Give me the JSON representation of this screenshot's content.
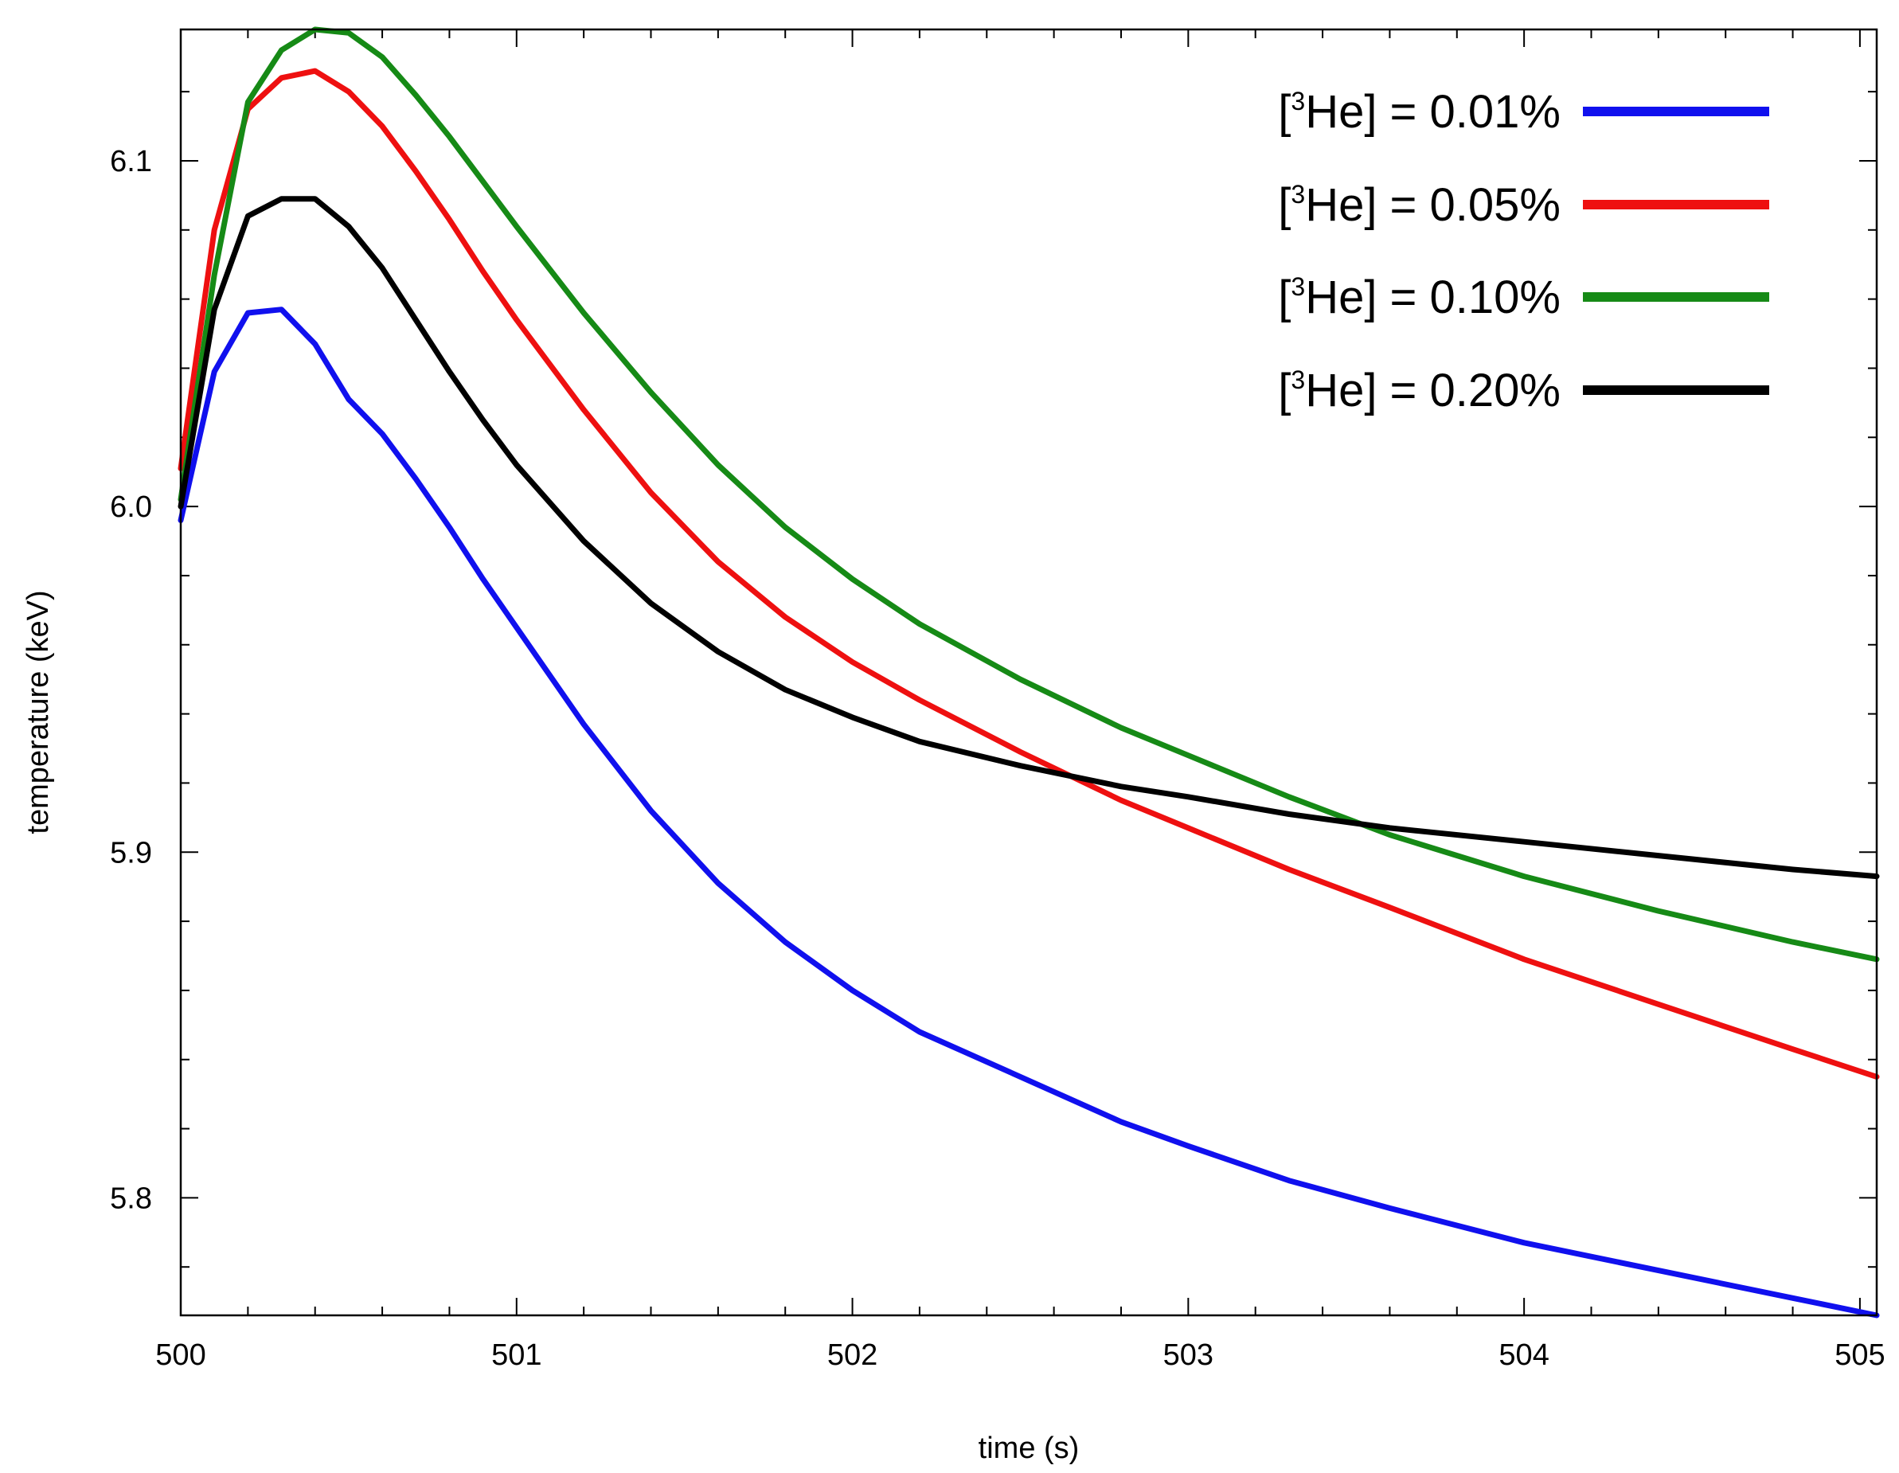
{
  "chart_data": {
    "type": "line",
    "title": "",
    "xlabel": "time (s)",
    "ylabel": "temperature (keV)",
    "xlim": [
      500,
      505.05
    ],
    "ylim": [
      5.766,
      6.138
    ],
    "xticks": [
      500,
      501,
      502,
      503,
      504,
      505
    ],
    "xtick_labels": [
      "500",
      "501",
      "502",
      "503",
      "504",
      "505"
    ],
    "yticks": [
      5.8,
      5.9,
      6.0,
      6.1
    ],
    "ytick_labels": [
      "5.8",
      "5.9",
      "6.0",
      "6.1"
    ],
    "grid": false,
    "legend_position": "top-right",
    "series": [
      {
        "name": "[3He] = 0.01%",
        "label_prefix": "[",
        "label_sup": "3",
        "label_rest": "He] = 0.01%",
        "color": "#1010ee",
        "x": [
          500.0,
          500.1,
          500.2,
          500.3,
          500.4,
          500.5,
          500.6,
          500.7,
          500.8,
          500.9,
          501.0,
          501.2,
          501.4,
          501.6,
          501.8,
          502.0,
          502.2,
          502.5,
          502.8,
          503.0,
          503.3,
          503.6,
          504.0,
          504.4,
          504.8,
          505.05
        ],
        "y": [
          5.996,
          6.039,
          6.056,
          6.057,
          6.047,
          6.031,
          6.021,
          6.008,
          5.994,
          5.979,
          5.965,
          5.937,
          5.912,
          5.891,
          5.874,
          5.86,
          5.848,
          5.835,
          5.822,
          5.815,
          5.805,
          5.797,
          5.787,
          5.779,
          5.771,
          5.766
        ]
      },
      {
        "name": "[3He] = 0.05%",
        "label_prefix": "[",
        "label_sup": "3",
        "label_rest": "He] = 0.05%",
        "color": "#ee1010",
        "x": [
          500.0,
          500.1,
          500.2,
          500.3,
          500.4,
          500.5,
          500.6,
          500.7,
          500.8,
          500.9,
          501.0,
          501.2,
          501.4,
          501.6,
          501.8,
          502.0,
          502.2,
          502.5,
          502.8,
          503.0,
          503.3,
          503.6,
          504.0,
          504.4,
          504.8,
          505.05
        ],
        "y": [
          6.011,
          6.08,
          6.115,
          6.124,
          6.126,
          6.12,
          6.11,
          6.097,
          6.083,
          6.068,
          6.054,
          6.028,
          6.004,
          5.984,
          5.968,
          5.955,
          5.944,
          5.929,
          5.915,
          5.907,
          5.895,
          5.884,
          5.869,
          5.856,
          5.843,
          5.835
        ]
      },
      {
        "name": "[3He] = 0.10%",
        "label_prefix": "[",
        "label_sup": "3",
        "label_rest": "He] = 0.10%",
        "color": "#168a16",
        "x": [
          500.0,
          500.1,
          500.2,
          500.3,
          500.4,
          500.5,
          500.6,
          500.7,
          500.8,
          500.9,
          501.0,
          501.2,
          501.4,
          501.6,
          501.8,
          502.0,
          502.2,
          502.5,
          502.8,
          503.0,
          503.3,
          503.6,
          504.0,
          504.4,
          504.8,
          505.05
        ],
        "y": [
          6.002,
          6.067,
          6.117,
          6.132,
          6.138,
          6.137,
          6.13,
          6.119,
          6.107,
          6.094,
          6.081,
          6.056,
          6.033,
          6.012,
          5.994,
          5.979,
          5.966,
          5.95,
          5.936,
          5.928,
          5.916,
          5.905,
          5.893,
          5.883,
          5.874,
          5.869
        ]
      },
      {
        "name": "[3He] = 0.20%",
        "label_prefix": "[",
        "label_sup": "3",
        "label_rest": "He] = 0.20%",
        "color": "#000000",
        "x": [
          500.0,
          500.1,
          500.2,
          500.3,
          500.4,
          500.5,
          500.6,
          500.7,
          500.8,
          500.9,
          501.0,
          501.2,
          501.4,
          501.6,
          501.8,
          502.0,
          502.2,
          502.5,
          502.8,
          503.0,
          503.3,
          503.6,
          504.0,
          504.4,
          504.8,
          505.05
        ],
        "y": [
          6.0,
          6.057,
          6.084,
          6.089,
          6.089,
          6.081,
          6.069,
          6.054,
          6.039,
          6.025,
          6.012,
          5.99,
          5.972,
          5.958,
          5.947,
          5.939,
          5.932,
          5.925,
          5.919,
          5.916,
          5.911,
          5.907,
          5.903,
          5.899,
          5.895,
          5.893
        ]
      }
    ]
  }
}
